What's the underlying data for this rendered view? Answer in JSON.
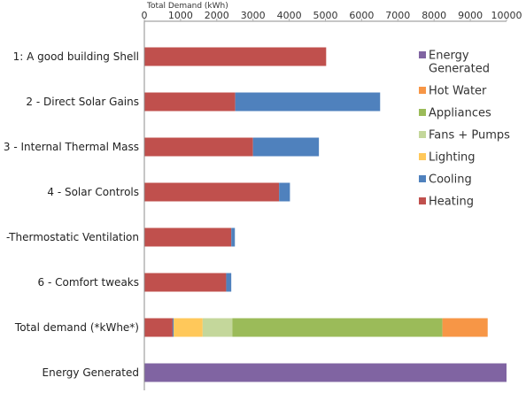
{
  "chart_data": {
    "type": "bar",
    "orientation": "horizontal",
    "stacked": true,
    "title": "",
    "xlabel": "Total Demand (kWh)",
    "xlabel_position": "top",
    "xlim": [
      0,
      10000
    ],
    "xticks": [
      0,
      1000,
      2000,
      3000,
      4000,
      5000,
      6000,
      7000,
      8000,
      9000,
      10000
    ],
    "grid": false,
    "legend_position": "right",
    "categories": [
      "1: A good building Shell",
      "2 - Direct Solar Gains",
      "3 - Internal Thermal Mass",
      "4 - Solar Controls",
      "-Thermostatic  Ventilation",
      "6 - Comfort tweaks",
      "Total demand (*kWhe*)",
      "Energy Generated"
    ],
    "series": [
      {
        "name": "Heating",
        "color": "#c0504d",
        "values": [
          5020,
          2510,
          3000,
          3720,
          2400,
          2260,
          780,
          0
        ]
      },
      {
        "name": "Cooling",
        "color": "#4f81bd",
        "values": [
          0,
          4000,
          1820,
          300,
          100,
          140,
          30,
          0
        ]
      },
      {
        "name": "Lighting",
        "color": "#ffc85a",
        "values": [
          0,
          0,
          0,
          0,
          0,
          0,
          800,
          0
        ]
      },
      {
        "name": "Fans + Pumps",
        "color": "#c4d79b",
        "values": [
          0,
          0,
          0,
          0,
          0,
          0,
          820,
          0
        ]
      },
      {
        "name": "Appliances",
        "color": "#9bbb59",
        "values": [
          0,
          0,
          0,
          0,
          0,
          0,
          5800,
          0
        ]
      },
      {
        "name": "Hot Water",
        "color": "#f79646",
        "values": [
          0,
          0,
          0,
          0,
          0,
          0,
          1250,
          0
        ]
      },
      {
        "name": "Energy\nGenerated",
        "color": "#8064a2",
        "values": [
          0,
          0,
          0,
          0,
          0,
          0,
          0,
          10000
        ]
      }
    ],
    "legend_order": [
      "Energy\nGenerated",
      "Hot Water",
      "Appliances",
      "Fans + Pumps",
      "Lighting",
      "Cooling",
      "Heating"
    ]
  }
}
